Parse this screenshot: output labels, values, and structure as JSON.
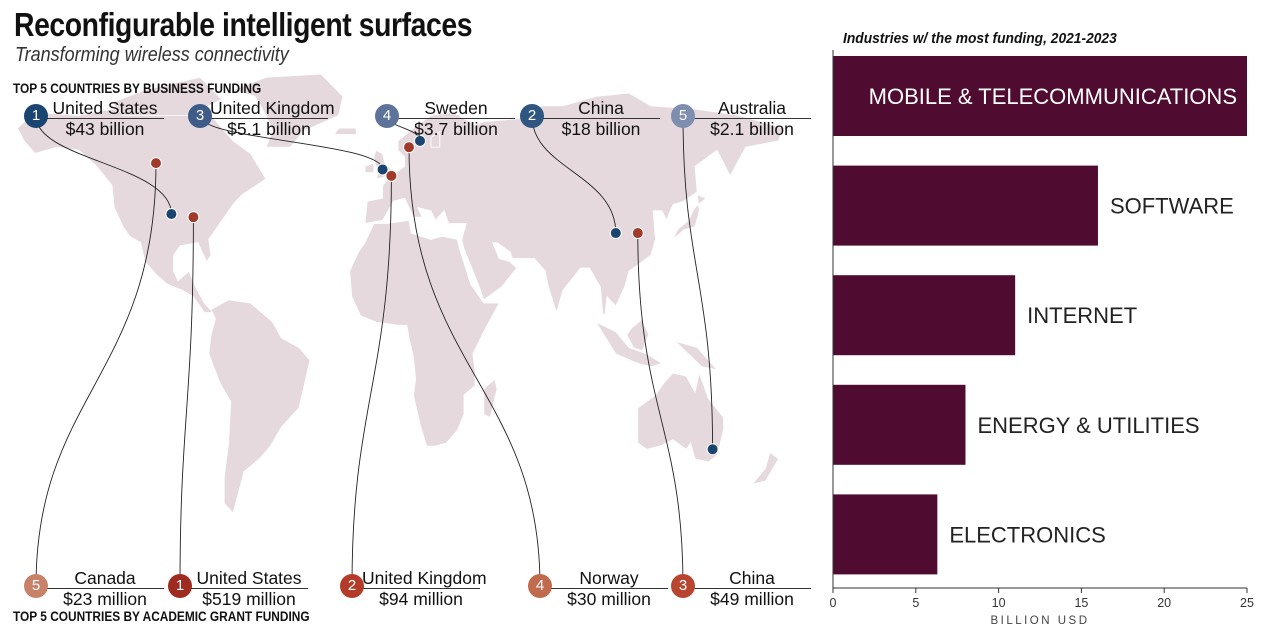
{
  "title": "Reconfigurable intelligent surfaces",
  "subtitle": "Transforming wireless connectivity",
  "business_funding": {
    "label": "TOP 5 COUNTRIES BY BUSINESS FUNDING",
    "color": "#1b4571",
    "entries": [
      {
        "rank": "1",
        "country": "United States",
        "value": "$43 billion",
        "badge_color": "#1b4571",
        "map_point": {
          "lon": -98,
          "lat": 39
        }
      },
      {
        "rank": "3",
        "country": "United Kingdom",
        "value": "$5.1 billion",
        "badge_color": "#3f5c89",
        "map_point": {
          "lon": -2,
          "lat": 53
        }
      },
      {
        "rank": "4",
        "country": "Sweden",
        "value": "$3.7 billion",
        "badge_color": "#5d7399",
        "map_point": {
          "lon": 15,
          "lat": 62
        }
      },
      {
        "rank": "2",
        "country": "China",
        "value": "$18 billion",
        "badge_color": "#2e5680",
        "map_point": {
          "lon": 104,
          "lat": 33
        }
      },
      {
        "rank": "5",
        "country": "Australia",
        "value": "$2.1 billion",
        "badge_color": "#7d8eae",
        "map_point": {
          "lon": 148,
          "lat": -35
        }
      }
    ]
  },
  "academic_funding": {
    "label": "TOP 5 COUNTRIES BY ACADEMIC GRANT FUNDING",
    "color": "#a03a2a",
    "entries": [
      {
        "rank": "5",
        "country": "Canada",
        "value": "$23 million",
        "badge_color": "#c8826a",
        "map_point": {
          "lon": -105,
          "lat": 55
        }
      },
      {
        "rank": "1",
        "country": "United States",
        "value": "$519 million",
        "badge_color": "#9e2a20",
        "map_point": {
          "lon": -88,
          "lat": 38
        }
      },
      {
        "rank": "2",
        "country": "United Kingdom",
        "value": "$94 million",
        "badge_color": "#b23b2a",
        "map_point": {
          "lon": 2,
          "lat": 51
        }
      },
      {
        "rank": "4",
        "country": "Norway",
        "value": "$30 million",
        "badge_color": "#c06a4e",
        "map_point": {
          "lon": 10,
          "lat": 60
        }
      },
      {
        "rank": "3",
        "country": "China",
        "value": "$49 million",
        "badge_color": "#b8452f",
        "map_point": {
          "lon": 114,
          "lat": 33
        }
      }
    ]
  },
  "map_style": {
    "land_color": "#e6d9dd",
    "line_color": "#222222"
  },
  "chart_data": {
    "type": "bar",
    "orientation": "horizontal",
    "title": "Industries w/ the most funding, 2021-2023",
    "categories": [
      "MOBILE & TELECOMMUNICATIONS",
      "SOFTWARE",
      "INTERNET",
      "ENERGY & UTILITIES",
      "ELECTRONICS"
    ],
    "values": [
      25,
      16,
      11,
      8,
      6.3
    ],
    "xlabel": "BILLION USD",
    "xlim": [
      0,
      25
    ],
    "xticks": [
      "0",
      "5",
      "10",
      "15",
      "20",
      "25"
    ],
    "bar_color": "#4f0c30",
    "grid": false
  }
}
